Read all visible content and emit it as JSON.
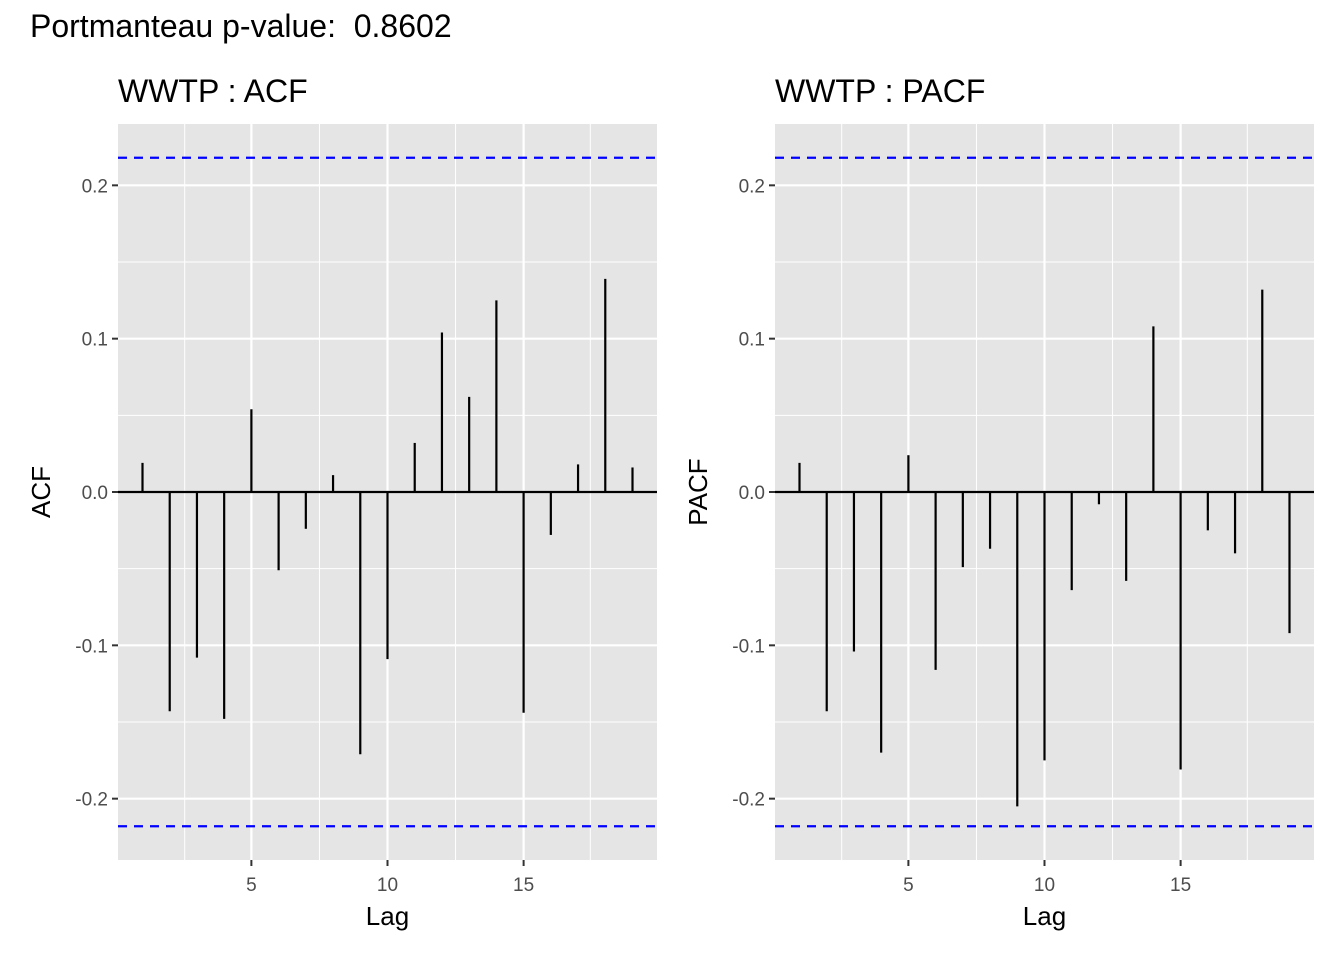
{
  "header": {
    "title": "Portmanteau p-value:  0.8602"
  },
  "colors": {
    "panel_bg": "#e5e5e5",
    "grid": "#ffffff",
    "spike": "#000000",
    "ci": "#0000ff",
    "axis_text": "#4d4d4d"
  },
  "chart_data": [
    {
      "type": "bar",
      "title": "WWTP : ACF",
      "xlabel": "Lag",
      "ylabel": "ACF",
      "xlim": [
        0.1,
        19.9
      ],
      "ylim": [
        -0.24,
        0.24
      ],
      "xticks": [
        5,
        10,
        15
      ],
      "xtick_labels": [
        "5",
        "10",
        "15"
      ],
      "yticks": [
        -0.2,
        -0.1,
        0.0,
        0.1,
        0.2
      ],
      "ytick_labels": [
        "-0.2",
        "-0.1",
        "0.0",
        "0.1",
        "0.2"
      ],
      "confidence_bound": 0.218,
      "grid": true,
      "x": [
        1,
        2,
        3,
        4,
        5,
        6,
        7,
        8,
        9,
        10,
        11,
        12,
        13,
        14,
        15,
        16,
        17,
        18,
        19
      ],
      "values": [
        0.019,
        -0.143,
        -0.108,
        -0.148,
        0.054,
        -0.051,
        -0.024,
        0.011,
        -0.171,
        -0.109,
        0.032,
        0.104,
        0.062,
        0.125,
        -0.144,
        -0.028,
        0.018,
        0.139,
        0.016
      ]
    },
    {
      "type": "bar",
      "title": "WWTP : PACF",
      "xlabel": "Lag",
      "ylabel": "PACF",
      "xlim": [
        0.1,
        19.9
      ],
      "ylim": [
        -0.24,
        0.24
      ],
      "xticks": [
        5,
        10,
        15
      ],
      "xtick_labels": [
        "5",
        "10",
        "15"
      ],
      "yticks": [
        -0.2,
        -0.1,
        0.0,
        0.1,
        0.2
      ],
      "ytick_labels": [
        "-0.2",
        "-0.1",
        "0.0",
        "0.1",
        "0.2"
      ],
      "confidence_bound": 0.218,
      "grid": true,
      "x": [
        1,
        2,
        3,
        4,
        5,
        6,
        7,
        8,
        9,
        10,
        11,
        12,
        13,
        14,
        15,
        16,
        17,
        18,
        19
      ],
      "values": [
        0.019,
        -0.143,
        -0.104,
        -0.17,
        0.024,
        -0.116,
        -0.049,
        -0.037,
        -0.205,
        -0.175,
        -0.064,
        -0.008,
        -0.058,
        0.108,
        -0.181,
        -0.025,
        -0.04,
        0.132,
        -0.092
      ]
    }
  ]
}
